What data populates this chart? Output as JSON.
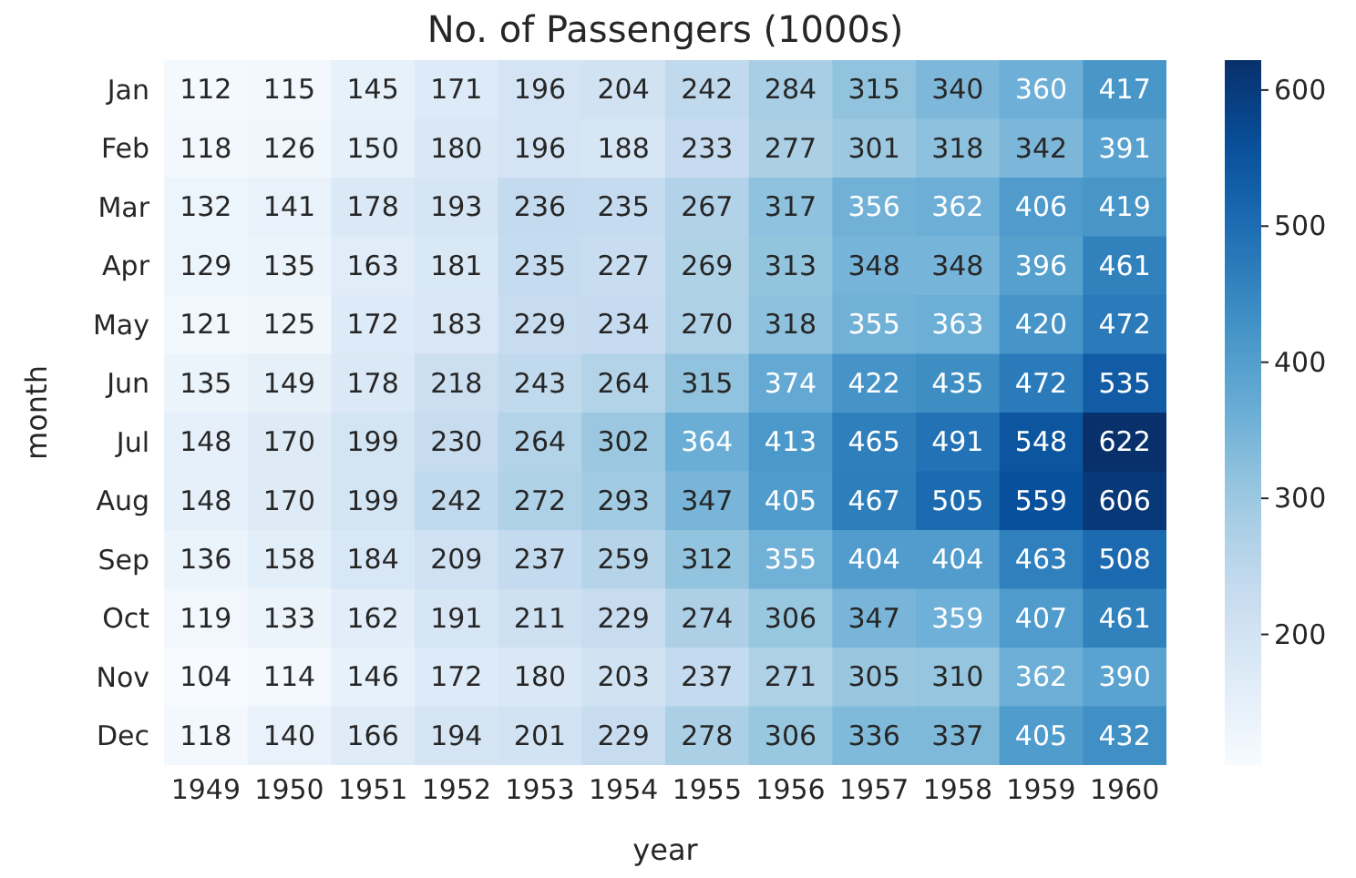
{
  "chart_data": {
    "type": "heatmap",
    "title": "No. of Passengers (1000s)",
    "xlabel": "year",
    "ylabel": "month",
    "categories": [
      "1949",
      "1950",
      "1951",
      "1952",
      "1953",
      "1954",
      "1955",
      "1956",
      "1957",
      "1958",
      "1959",
      "1960"
    ],
    "y_categories": [
      "Jan",
      "Feb",
      "Mar",
      "Apr",
      "May",
      "Jun",
      "Jul",
      "Aug",
      "Sep",
      "Oct",
      "Nov",
      "Dec"
    ],
    "cells": [
      [
        112,
        115,
        145,
        171,
        196,
        204,
        242,
        284,
        315,
        340,
        360,
        417
      ],
      [
        118,
        126,
        150,
        180,
        196,
        188,
        233,
        277,
        301,
        318,
        342,
        391
      ],
      [
        132,
        141,
        178,
        193,
        236,
        235,
        267,
        317,
        356,
        362,
        406,
        419
      ],
      [
        129,
        135,
        163,
        181,
        235,
        227,
        269,
        313,
        348,
        348,
        396,
        461
      ],
      [
        121,
        125,
        172,
        183,
        229,
        234,
        270,
        318,
        355,
        363,
        420,
        472
      ],
      [
        135,
        149,
        178,
        218,
        243,
        264,
        315,
        374,
        422,
        435,
        472,
        535
      ],
      [
        148,
        170,
        199,
        230,
        264,
        302,
        364,
        413,
        465,
        491,
        548,
        622
      ],
      [
        148,
        170,
        199,
        242,
        272,
        293,
        347,
        405,
        467,
        505,
        559,
        606
      ],
      [
        136,
        158,
        184,
        209,
        237,
        259,
        312,
        355,
        404,
        404,
        463,
        508
      ],
      [
        119,
        133,
        162,
        191,
        211,
        229,
        274,
        306,
        347,
        359,
        407,
        461
      ],
      [
        104,
        114,
        146,
        172,
        180,
        203,
        237,
        271,
        305,
        310,
        362,
        390
      ],
      [
        118,
        140,
        166,
        194,
        201,
        229,
        278,
        306,
        336,
        337,
        405,
        432
      ]
    ],
    "clim": [
      104,
      622
    ],
    "cticks": [
      200,
      300,
      400,
      500,
      600
    ],
    "data_labels": true
  }
}
